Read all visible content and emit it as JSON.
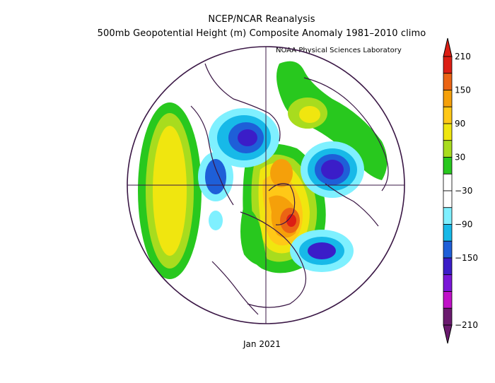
{
  "header": {
    "title_line1": "NCEP/NCAR Reanalysis",
    "title_line2": "500mb Geopotential Height (m) Composite Anomaly 1981–2010 climo",
    "source": "NOAA Physical Sciences Laboratory"
  },
  "footer": {
    "date": "Jan 2021"
  },
  "colorbar": {
    "colors": [
      "#6a1a6e",
      "#c011c8",
      "#7a16d8",
      "#3b1dc8",
      "#1e5fd8",
      "#17b9e8",
      "#7ff0ff",
      "#ffffff",
      "#ffffff",
      "#28c81e",
      "#a8dc1e",
      "#f0e60f",
      "#ffc817",
      "#f5a00a",
      "#eb6414",
      "#dc1e14"
    ],
    "labels": [
      "210",
      "150",
      "90",
      "30",
      "−30",
      "−90",
      "−150",
      "−210"
    ]
  },
  "map": {
    "projection": "north-polar-stereographic",
    "anomalies": [
      {
        "region": "north-pacific",
        "sign": "positive",
        "peak": 110
      },
      {
        "region": "greenland-baffin",
        "sign": "positive",
        "peak": 200
      },
      {
        "region": "hudson-bay",
        "sign": "negative",
        "peak": -150
      },
      {
        "region": "siberia",
        "sign": "negative",
        "peak": -150
      },
      {
        "region": "east-asia",
        "sign": "negative",
        "peak": -140
      },
      {
        "region": "europe",
        "sign": "positive",
        "peak": 60
      }
    ]
  }
}
